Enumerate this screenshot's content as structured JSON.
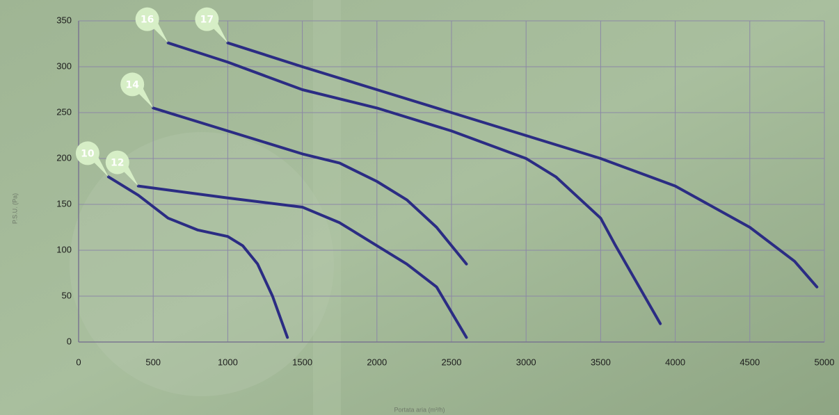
{
  "chart_data": {
    "type": "line",
    "ylabel": "P.S.U. (Pa)",
    "xlabel": "Portata aria (m³/h)",
    "xlim": [
      0,
      5000
    ],
    "ylim": [
      0,
      350
    ],
    "xticks": [
      0,
      500,
      1000,
      1500,
      2000,
      2500,
      3000,
      3500,
      4000,
      4500,
      5000
    ],
    "yticks": [
      0,
      50,
      100,
      150,
      200,
      250,
      300,
      350
    ],
    "grid": true,
    "series": [
      {
        "name": "10",
        "color": "#2b2c83",
        "x": [
          200,
          400,
          600,
          800,
          1000,
          1100,
          1200,
          1300,
          1400
        ],
        "values": [
          180,
          160,
          135,
          122,
          115,
          105,
          85,
          50,
          5
        ]
      },
      {
        "name": "12",
        "color": "#2b2c83",
        "x": [
          400,
          1000,
          1500,
          1750,
          2000,
          2200,
          2400,
          2600
        ],
        "values": [
          170,
          157,
          147,
          130,
          105,
          85,
          60,
          5
        ]
      },
      {
        "name": "14",
        "color": "#2b2c83",
        "x": [
          500,
          1000,
          1500,
          1750,
          2000,
          2200,
          2300,
          2400,
          2600
        ],
        "values": [
          255,
          230,
          205,
          195,
          175,
          155,
          140,
          125,
          85
        ]
      },
      {
        "name": "16",
        "color": "#2b2c83",
        "x": [
          600,
          1000,
          1500,
          2000,
          2500,
          3000,
          3200,
          3500,
          3600,
          3900
        ],
        "values": [
          326,
          305,
          275,
          255,
          230,
          200,
          180,
          135,
          105,
          20
        ]
      },
      {
        "name": "17",
        "color": "#2b2c83",
        "x": [
          1000,
          1500,
          2000,
          2500,
          3000,
          3500,
          4000,
          4500,
          4800,
          4950
        ],
        "values": [
          326,
          300,
          275,
          250,
          225,
          200,
          170,
          125,
          88,
          60
        ]
      }
    ]
  }
}
